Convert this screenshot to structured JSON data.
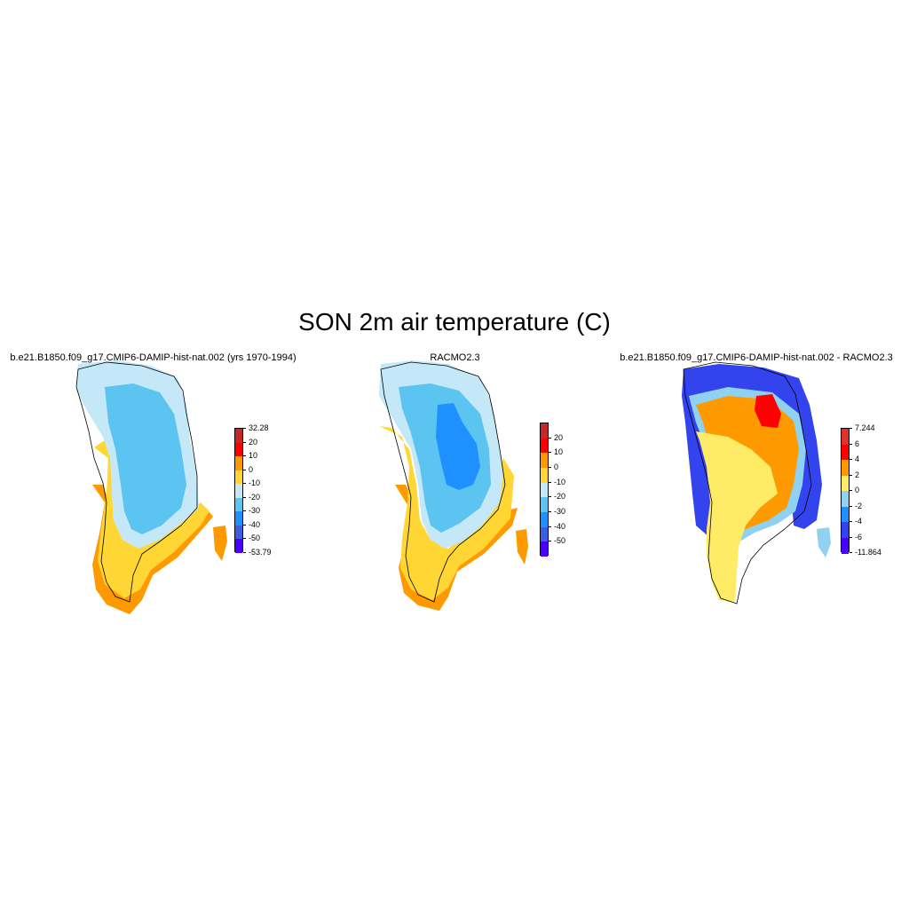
{
  "title": "SON 2m air temperature (C)",
  "panels": [
    {
      "title": "b.e21.B1850.f09_g17.CMIP6-DAMIP-hist-nat.002 (yrs 1970-1994)",
      "colorbar": {
        "colors": [
          "#c62828",
          "#ff0000",
          "#ff9900",
          "#ffd633",
          "#c4e8f7",
          "#5bc4f0",
          "#1e90ff",
          "#3c5fe0",
          "#4b00ff"
        ],
        "labels": [
          "32.28",
          "20",
          "10",
          "0",
          "-10",
          "-20",
          "-30",
          "-40",
          "-50",
          "-53.79"
        ]
      }
    },
    {
      "title": "RACMO2.3",
      "colorbar": {
        "colors": [
          "#c62828",
          "#ff0000",
          "#ff9900",
          "#ffd633",
          "#c4e8f7",
          "#5bc4f0",
          "#1e90ff",
          "#3c5fe0",
          "#4b00ff"
        ],
        "labels": [
          "20",
          "10",
          "0",
          "-10",
          "-20",
          "-30",
          "-40",
          "-50"
        ]
      }
    },
    {
      "title": "b.e21.B1850.f09_g17.CMIP6-DAMIP-hist-nat.002 - RACMO2.3",
      "colorbar": {
        "colors": [
          "#e03030",
          "#ff0000",
          "#ff9900",
          "#ffec66",
          "#8ed1f0",
          "#1e90ff",
          "#3344ee",
          "#4b00ff"
        ],
        "labels": [
          "7.244",
          "6",
          "4",
          "2",
          "0",
          "-2",
          "-4",
          "-6",
          "-11.864"
        ]
      }
    }
  ]
}
